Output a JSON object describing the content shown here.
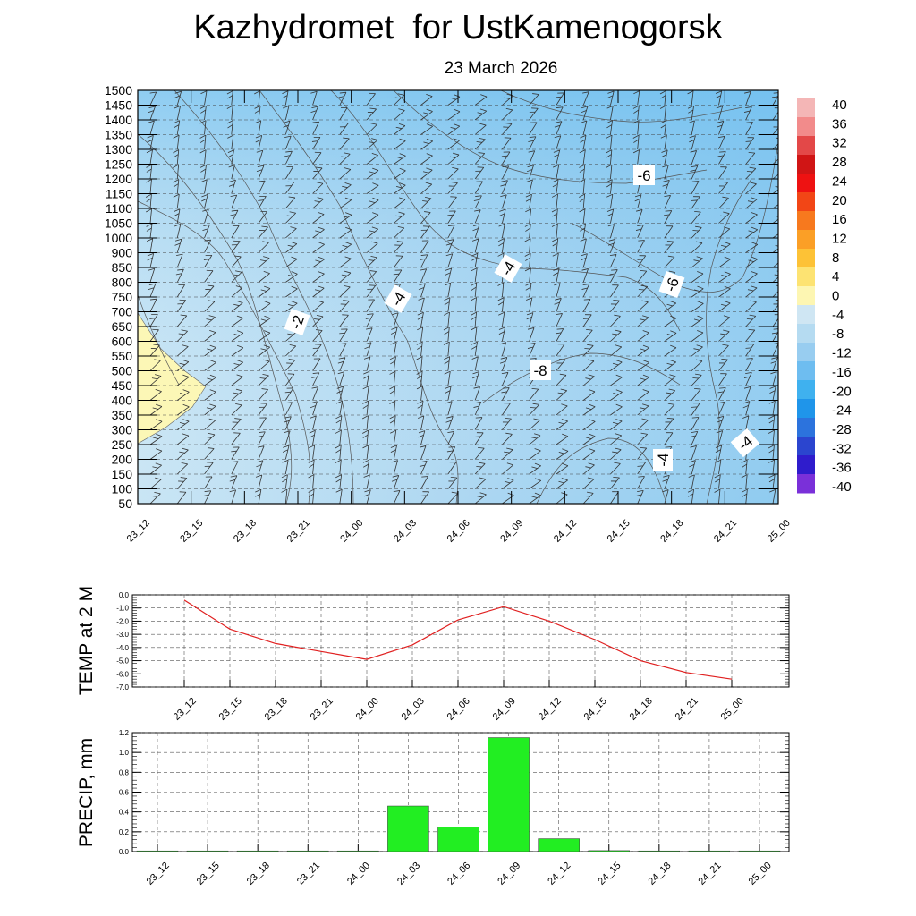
{
  "header": {
    "title": "Kazhydromet  for UstKamenogorsk",
    "date": "23 March 2026"
  },
  "chart_data": [
    {
      "type": "heatmap",
      "name": "upper-air-cross-section",
      "x_tick_labels": [
        "23_12",
        "23_15",
        "23_18",
        "23_21",
        "24_00",
        "24_03",
        "24_06",
        "24_09",
        "24_12",
        "24_15",
        "24_18",
        "24_21",
        "25_00"
      ],
      "y_tick_labels": [
        "1500",
        "1450",
        "1400",
        "1350",
        "1300",
        "1250",
        "1200",
        "1150",
        "1100",
        "1050",
        "1000",
        "900",
        "850",
        "800",
        "750",
        "700",
        "650",
        "600",
        "550",
        "500",
        "450",
        "400",
        "350",
        "300",
        "250",
        "200",
        "150",
        "100",
        "50"
      ],
      "contour_labels": [
        "-2",
        "-4",
        "-4",
        "-6",
        "-6",
        "-8",
        "-4",
        "-4"
      ],
      "colorbar_labels": [
        "40",
        "36",
        "32",
        "28",
        "24",
        "20",
        "16",
        "12",
        "8",
        "4",
        "0",
        "-4",
        "-8",
        "-12",
        "-16",
        "-20",
        "-24",
        "-28",
        "-32",
        "-36",
        "-40"
      ],
      "colorbar_colors": [
        "#f4b6b6",
        "#f28b8b",
        "#e34848",
        "#d01515",
        "#ee1212",
        "#f24616",
        "#f7791e",
        "#fb9f26",
        "#fdc236",
        "#fde372",
        "#fdf6b2",
        "#cfe6f3",
        "#b5dbf1",
        "#98cdf0",
        "#6ebdf0",
        "#3fb1ef",
        "#1f95ea",
        "#2c73dd",
        "#2b45cf",
        "#2f1ccc",
        "#7a30d9"
      ],
      "grid": true
    },
    {
      "type": "line",
      "name": "temp-at-2m",
      "ylabel": "TEMP at 2 M",
      "categories": [
        "23_12",
        "23_15",
        "23_18",
        "23_21",
        "24_00",
        "24_03",
        "24_06",
        "24_09",
        "24_12",
        "24_15",
        "24_18",
        "24_21",
        "25_00"
      ],
      "values": [
        -0.4,
        -2.6,
        -3.7,
        -4.3,
        -4.9,
        -3.8,
        -1.9,
        -0.9,
        -2.0,
        -3.4,
        -5.0,
        -5.9,
        -6.4
      ],
      "y_tick_labels": [
        "0.0",
        "-1.0",
        "-2.0",
        "-3.0",
        "-4.0",
        "-5.0",
        "-6.0",
        "-7.0"
      ],
      "ylim": [
        -7.0,
        0.0
      ],
      "line_color": "#e02020",
      "grid": true
    },
    {
      "type": "bar",
      "name": "precip",
      "ylabel": "PRECIP, mm",
      "categories": [
        "23_12",
        "23_15",
        "23_18",
        "23_21",
        "24_00",
        "24_03",
        "24_06",
        "24_09",
        "24_12",
        "24_15",
        "24_18",
        "24_21",
        "25_00"
      ],
      "values": [
        0,
        0,
        0,
        0,
        0,
        0.46,
        0.25,
        1.15,
        0.13,
        0.01,
        0,
        0,
        0
      ],
      "y_tick_labels": [
        "0.0",
        "0.2",
        "0.4",
        "0.6",
        "0.8",
        "1.0",
        "1.2"
      ],
      "ylim": [
        0,
        1.2
      ],
      "bar_color": "#22ee22",
      "grid": true
    }
  ]
}
